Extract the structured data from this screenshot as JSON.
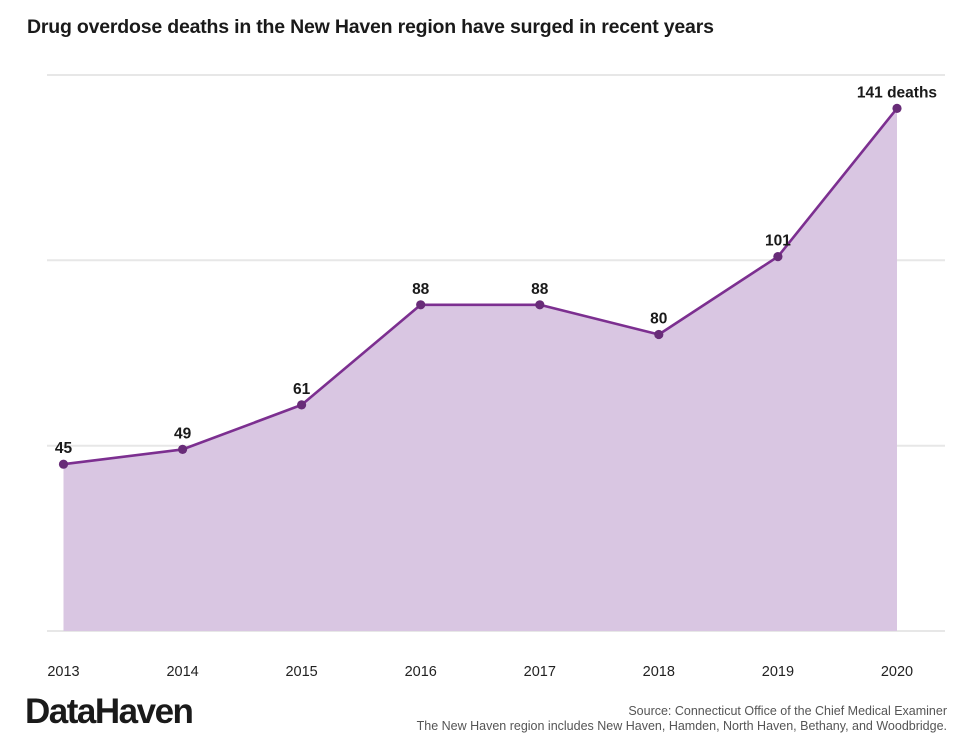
{
  "header": {
    "title": "Drug overdose deaths in the New Haven region have surged in recent years"
  },
  "chart_data": {
    "type": "area",
    "title": "Drug overdose deaths in the New Haven region have surged in recent years",
    "categories": [
      "2013",
      "2014",
      "2015",
      "2016",
      "2017",
      "2018",
      "2019",
      "2020"
    ],
    "values": [
      45,
      49,
      61,
      88,
      88,
      80,
      101,
      141
    ],
    "point_labels": [
      "45",
      "49",
      "61",
      "88",
      "88",
      "80",
      "101",
      "141 deaths"
    ],
    "xlabel": "",
    "ylabel": "",
    "ylim": [
      0,
      150
    ],
    "gridline_values": [
      0,
      50,
      100,
      150
    ],
    "grid": "horizontal-only, no y-axis tick labels",
    "legend": "none",
    "colors": {
      "line": "#7c2f90",
      "point": "#682c78",
      "fill": "#d9c6e2",
      "gridline": "#e7e7e7",
      "data_label": "#1a1a1a",
      "tick_label": "#222222"
    }
  },
  "footer": {
    "logo": "DataHaven",
    "source_line1": "Source: Connecticut Office of the Chief Medical Examiner",
    "source_line2": "The New Haven region includes New Haven, Hamden, North Haven, Bethany, and Woodbridge."
  }
}
